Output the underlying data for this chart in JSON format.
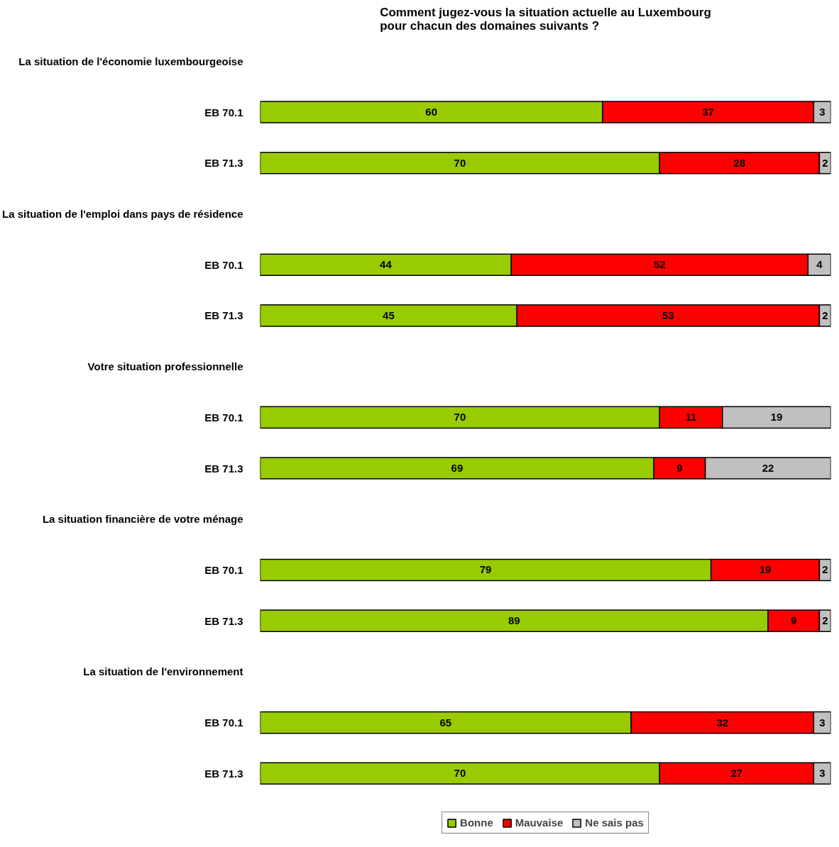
{
  "chart_data": {
    "type": "bar",
    "orientation": "horizontal",
    "stacked": true,
    "title": "Comment jugez-vous la situation actuelle au Luxembourg\npour chacun des domaines suivants ?",
    "categories": [
      "La situation de l'économie luxembourgeoise",
      "EB 70.1",
      "EB 71.3",
      "La situation de l'emploi dans pays de résidence",
      "EB 70.1",
      "EB 71.3",
      "Votre situation professionnelle",
      "EB 70.1",
      "EB 71.3",
      "La situation financière de votre ménage",
      "EB 70.1",
      "EB 71.3",
      "La situation de l'environnement",
      "EB 70.1",
      "EB 71.3"
    ],
    "series": [
      {
        "name": "Bonne",
        "color": "#99cc00",
        "values": [
          null,
          60,
          70,
          null,
          44,
          45,
          null,
          70,
          69,
          null,
          79,
          89,
          null,
          65,
          70
        ]
      },
      {
        "name": "Mauvaise",
        "color": "#ff0000",
        "values": [
          null,
          37,
          28,
          null,
          52,
          53,
          null,
          11,
          9,
          null,
          19,
          9,
          null,
          32,
          27
        ]
      },
      {
        "name": "Ne sais pas",
        "color": "#c0c0c0",
        "values": [
          null,
          3,
          2,
          null,
          4,
          2,
          null,
          19,
          22,
          null,
          2,
          2,
          null,
          3,
          3
        ]
      }
    ],
    "xlim": [
      0,
      100
    ],
    "tick_labels": "y",
    "data_labels": true,
    "legend": "bottom",
    "grid": false
  }
}
